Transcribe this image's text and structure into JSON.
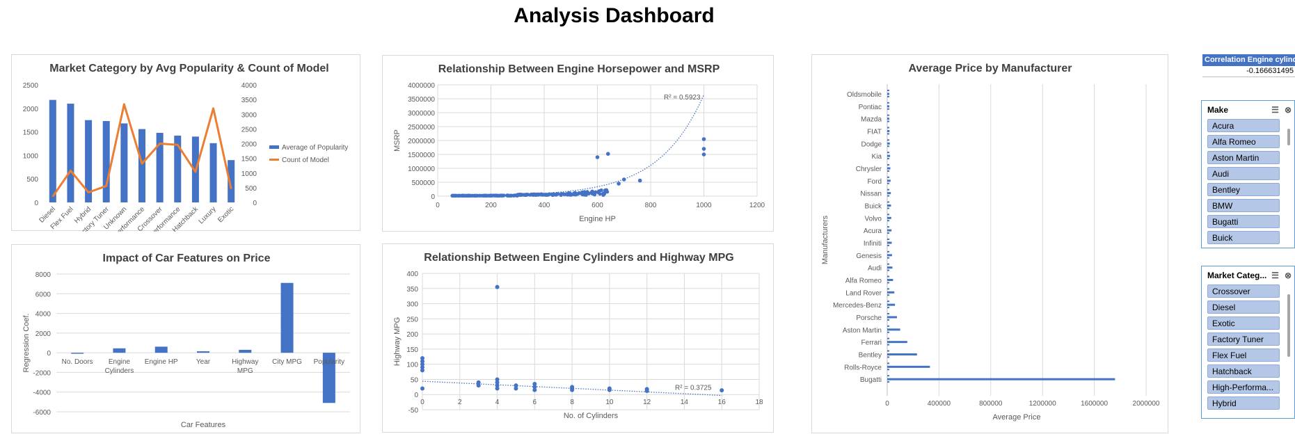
{
  "dashboard": {
    "title": "Analysis Dashboard"
  },
  "colors": {
    "blue": "#4472c4",
    "orange": "#ed7d31"
  },
  "correlation": {
    "header": "Correlation Engine cylinders",
    "value": "-0.166631495"
  },
  "slicers": {
    "make": {
      "title": "Make",
      "items": [
        "Acura",
        "Alfa Romeo",
        "Aston Martin",
        "Audi",
        "Bentley",
        "BMW",
        "Bugatti",
        "Buick"
      ]
    },
    "market": {
      "title": "Market Categ...",
      "items": [
        "Crossover",
        "Diesel",
        "Exotic",
        "Factory Tuner",
        "Flex Fuel",
        "Hatchback",
        "High-Performa...",
        "Hybrid"
      ]
    }
  },
  "chart_data": [
    {
      "id": "market",
      "type": "bar",
      "title": "Market Category by Avg Popularity & Count of Model",
      "categories": [
        "Diesel",
        "Flex Fuel",
        "Hybrid",
        "Factory Tuner",
        "Unknown",
        "High-Performance",
        "Crossover",
        "Performance",
        "Hatchback",
        "Luxury",
        "Exotic"
      ],
      "series": [
        {
          "name": "Average of Popularity",
          "type": "bar",
          "axis": "left",
          "values": [
            2180,
            2100,
            1750,
            1730,
            1680,
            1560,
            1480,
            1420,
            1400,
            1260,
            900
          ]
        },
        {
          "name": "Count of Model",
          "type": "line",
          "axis": "right",
          "values": [
            200,
            1080,
            340,
            560,
            3340,
            1320,
            2000,
            1960,
            1040,
            3200,
            460
          ]
        }
      ],
      "yticks": [
        "0",
        "500",
        "1000",
        "1500",
        "2000",
        "2500"
      ],
      "y2ticks": [
        "0",
        "500",
        "1000",
        "1500",
        "2000",
        "2500",
        "3000",
        "3500",
        "4000"
      ],
      "ylim": [
        0,
        2500
      ],
      "y2lim": [
        0,
        4000
      ],
      "legend": "right"
    },
    {
      "id": "hp",
      "type": "scatter",
      "title": "Relationship Between Engine Horsepower and MSRP",
      "xlabel": "Engine HP",
      "ylabel": "MSRP",
      "xlim": [
        0,
        1200
      ],
      "ylim": [
        0,
        4000000
      ],
      "xticks": [
        "0",
        "200",
        "400",
        "600",
        "800",
        "1000",
        "1200"
      ],
      "yticks": [
        "0",
        "500000",
        "1000000",
        "1500000",
        "2000000",
        "2500000",
        "3000000",
        "3500000",
        "4000000"
      ],
      "annotation": "R² = 0.5923",
      "trendline": "exponential",
      "grid": true
    },
    {
      "id": "features",
      "type": "bar",
      "title": "Impact of Car Features on Price",
      "xlabel": "Car Features",
      "ylabel": "Regression Coef.",
      "categories": [
        "No. Doors",
        "Engine Cylinders",
        "Engine HP",
        "Year",
        "Highway MPG",
        "City MPG",
        "Popularity"
      ],
      "values": [
        -100,
        450,
        620,
        150,
        300,
        7100,
        -5100
      ],
      "ylim": [
        -6000,
        8000
      ],
      "yticks": [
        "-6000",
        "-4000",
        "-2000",
        "0",
        "2000",
        "4000",
        "6000",
        "8000"
      ]
    },
    {
      "id": "cyl",
      "type": "scatter",
      "title": "Relationship Between Engine Cylinders and Highway MPG",
      "xlabel": "No. of Cylinders",
      "ylabel": "Highway MPG",
      "xlim": [
        0,
        18
      ],
      "ylim": [
        -50,
        400
      ],
      "xticks": [
        "0",
        "2",
        "4",
        "6",
        "8",
        "10",
        "12",
        "14",
        "16",
        "18"
      ],
      "yticks": [
        "-50",
        "0",
        "50",
        "100",
        "150",
        "200",
        "250",
        "300",
        "350",
        "400"
      ],
      "points": [
        [
          0,
          20
        ],
        [
          0,
          80
        ],
        [
          0,
          90
        ],
        [
          0,
          100
        ],
        [
          0,
          110
        ],
        [
          0,
          120
        ],
        [
          3,
          30
        ],
        [
          3,
          40
        ],
        [
          4,
          20
        ],
        [
          4,
          30
        ],
        [
          4,
          40
        ],
        [
          4,
          50
        ],
        [
          4,
          355
        ],
        [
          5,
          20
        ],
        [
          5,
          30
        ],
        [
          6,
          15
        ],
        [
          6,
          25
        ],
        [
          6,
          35
        ],
        [
          8,
          15
        ],
        [
          8,
          20
        ],
        [
          8,
          25
        ],
        [
          10,
          15
        ],
        [
          10,
          20
        ],
        [
          12,
          12
        ],
        [
          12,
          18
        ],
        [
          16,
          14
        ]
      ],
      "annotation": "R² = 0.3725",
      "trendline": "linear",
      "grid": true
    },
    {
      "id": "price",
      "type": "bar",
      "orientation": "horizontal",
      "title": "Average Price by Manufacturer",
      "xlabel": "Average Price",
      "ylabel": "Manufacturers",
      "xlim": [
        0,
        2000000
      ],
      "xticks": [
        "0",
        "400000",
        "800000",
        "1200000",
        "1600000",
        "2000000"
      ],
      "labels": [
        "Oldsmobile",
        "Pontiac",
        "Mazda",
        "FIAT",
        "Dodge",
        "Kia",
        "Chrysler",
        "Ford",
        "Nissan",
        "Buick",
        "Volvo",
        "Acura",
        "Infiniti",
        "Genesis",
        "Audi",
        "Alfa Romeo",
        "Land Rover",
        "Mercedes-Benz",
        "Porsche",
        "Aston Martin",
        "Ferrari",
        "Bentley",
        "Rolls-Royce",
        "Bugatti"
      ],
      "values": [
        12000,
        14000,
        16000,
        18000,
        20000,
        22000,
        24000,
        26000,
        28000,
        29000,
        31000,
        33000,
        35000,
        37000,
        40000,
        45000,
        55000,
        60000,
        75000,
        100000,
        155000,
        230000,
        330000,
        1760000
      ],
      "grid": true
    }
  ]
}
